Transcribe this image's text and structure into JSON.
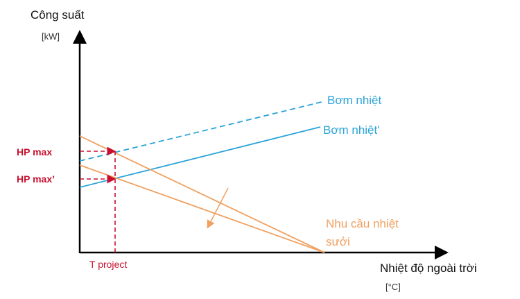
{
  "axes": {
    "y_title": "Công suất",
    "y_unit": "[kW]",
    "x_title": "Nhiệt độ ngoài trời",
    "x_unit": "[°C]"
  },
  "labels": {
    "hp_max": "HP max",
    "hp_max_prime": "HP max’",
    "t_project": "T project",
    "heat_pump": "Bơm nhiệt",
    "heat_pump_prime": "Bơm nhiệt'",
    "heating_demand_line1": "Nhu cầu nhiệt",
    "heating_demand_line2": "sưởi"
  },
  "colors": {
    "axis": "#000000",
    "heat_pump": "#2aa3d8",
    "demand": "#f0a060",
    "marker": "#c8102e"
  }
}
